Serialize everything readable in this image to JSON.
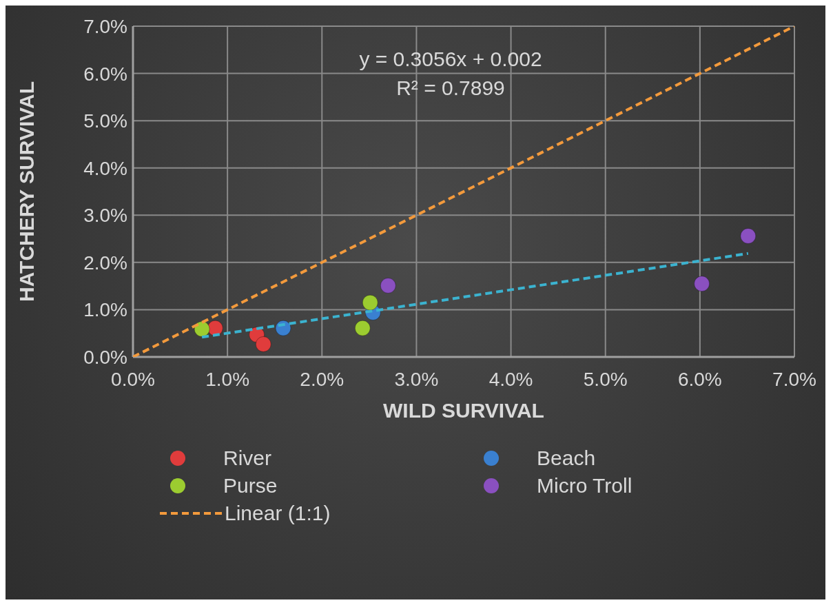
{
  "chart_data": {
    "type": "scatter",
    "xlabel": "WILD SURVIVAL",
    "ylabel": "HATCHERY SURVIVAL",
    "xlim": [
      0,
      7
    ],
    "ylim": [
      0,
      7
    ],
    "xticks": [
      {
        "value": 0,
        "label": "0.0%"
      },
      {
        "value": 1,
        "label": "1.0%"
      },
      {
        "value": 2,
        "label": "2.0%"
      },
      {
        "value": 3,
        "label": "3.0%"
      },
      {
        "value": 4,
        "label": "4.0%"
      },
      {
        "value": 5,
        "label": "5.0%"
      },
      {
        "value": 6,
        "label": "6.0%"
      },
      {
        "value": 7,
        "label": "7.0%"
      }
    ],
    "yticks": [
      {
        "value": 0,
        "label": "0.0%"
      },
      {
        "value": 1,
        "label": "1.0%"
      },
      {
        "value": 2,
        "label": "2.0%"
      },
      {
        "value": 3,
        "label": "3.0%"
      },
      {
        "value": 4,
        "label": "4.0%"
      },
      {
        "value": 5,
        "label": "5.0%"
      },
      {
        "value": 6,
        "label": "6.0%"
      },
      {
        "value": 7,
        "label": "7.0%"
      }
    ],
    "grid": true,
    "legend": "bottom",
    "marker": "circle",
    "annotations": [
      "y = 0.3056x + 0.002",
      "R² = 0.7899"
    ],
    "series": [
      {
        "name": "River",
        "color": "#e03c3c",
        "x": [
          0.87,
          1.31,
          1.38
        ],
        "values": [
          0.61,
          0.47,
          0.27
        ]
      },
      {
        "name": "Beach",
        "color": "#3a80d0",
        "x": [
          1.59,
          2.54
        ],
        "values": [
          0.61,
          0.94
        ]
      },
      {
        "name": "Purse",
        "color": "#9ccc30",
        "x": [
          0.73,
          2.51,
          2.43
        ],
        "values": [
          0.59,
          1.15,
          0.61
        ]
      },
      {
        "name": "Micro Troll",
        "color": "#8a50c0",
        "x": [
          2.7,
          6.51,
          6.02
        ],
        "values": [
          1.51,
          2.56,
          1.55
        ]
      },
      {
        "name": "Linear (1:1)",
        "type": "line",
        "color": "#f39a3c",
        "line_style": "dashed",
        "marker": "none",
        "x": [
          0,
          7
        ],
        "values": [
          0,
          7
        ]
      },
      {
        "type": "line",
        "color": "#3bb3d0",
        "line_style": "dashed",
        "marker": "none",
        "x": [
          0.73,
          6.51
        ],
        "values": [
          0.42,
          2.19
        ]
      }
    ]
  }
}
